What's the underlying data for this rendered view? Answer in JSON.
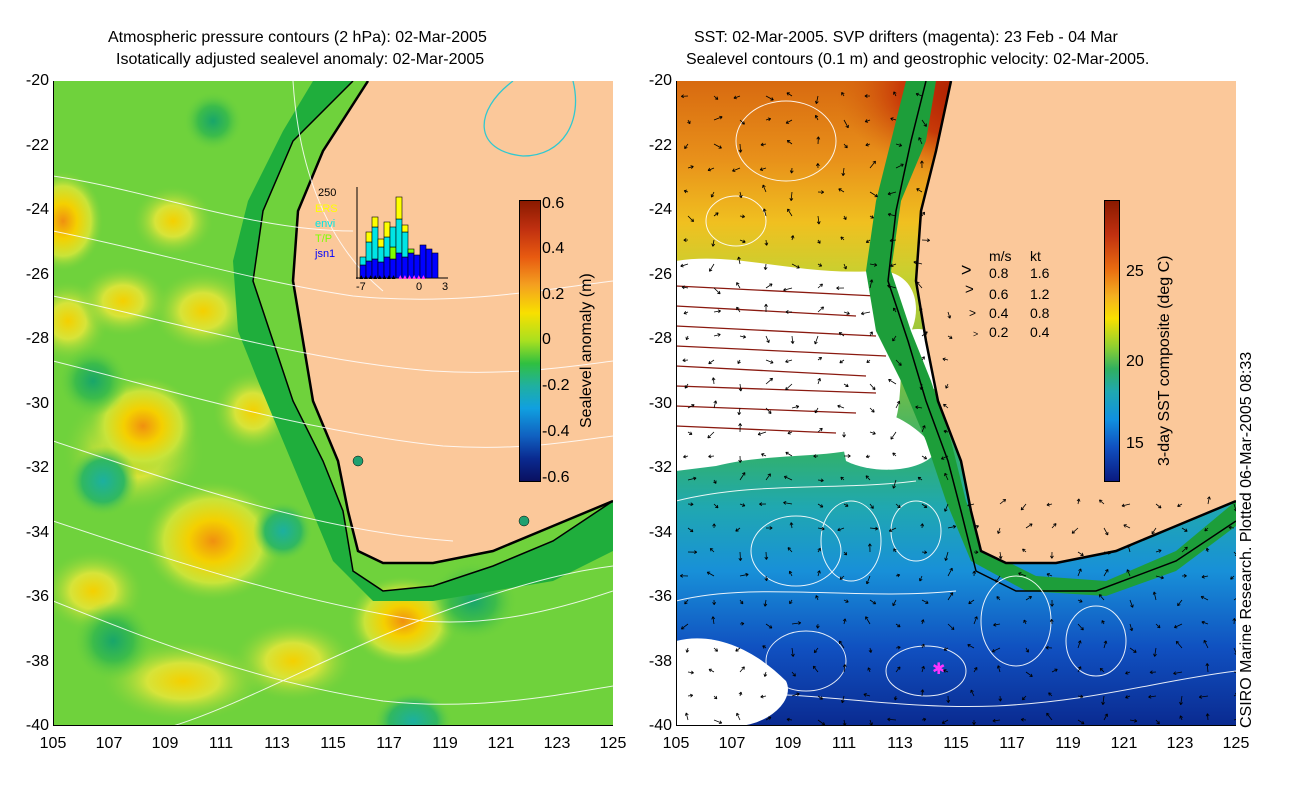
{
  "left_panel": {
    "title_line1": "Atmospheric pressure contours (2 hPa): 02-Mar-2005",
    "title_line2": "Isotatically adjusted sealevel anomaly: 02-Mar-2005",
    "y_ticks": [
      "-20",
      "-22",
      "-24",
      "-26",
      "-28",
      "-30",
      "-32",
      "-34",
      "-36",
      "-38",
      "-40"
    ],
    "x_ticks": [
      "105",
      "107",
      "109",
      "111",
      "113",
      "115",
      "117",
      "119",
      "121",
      "123",
      "125"
    ],
    "colorbar": {
      "label": "Sealevel anomaly (m)",
      "ticks": [
        "0.6",
        "0.4",
        "0.2",
        "0",
        "-0.2",
        "-0.4",
        "-0.6"
      ]
    },
    "inset": {
      "y_max_label": "250",
      "legend": [
        "ERS",
        "envi",
        "T/P",
        "jsn1"
      ],
      "legend_colors": [
        "#ffff00",
        "#00e5e5",
        "#7fff00",
        "#0000ff"
      ],
      "x_labels": [
        "-7",
        "0",
        "3"
      ]
    }
  },
  "right_panel": {
    "title_line1": "SST: 02-Mar-2005. SVP drifters (magenta): 23 Feb - 04 Mar",
    "title_line2": "Sealevel contours (0.1 m) and geostrophic velocity: 02-Mar-2005.",
    "y_ticks": [
      "-20",
      "-22",
      "-24",
      "-26",
      "-28",
      "-30",
      "-32",
      "-34",
      "-36",
      "-38",
      "-40"
    ],
    "x_ticks": [
      "105",
      "107",
      "109",
      "111",
      "113",
      "115",
      "117",
      "119",
      "121",
      "123",
      "125"
    ],
    "colorbar": {
      "label": "3-day SST composite (deg C)",
      "ticks": [
        "25",
        "20",
        "15"
      ]
    },
    "velocity_legend": {
      "header_ms": "m/s",
      "header_kt": "kt",
      "rows": [
        {
          "ms": "0.8",
          "kt": "1.6"
        },
        {
          "ms": "0.6",
          "kt": "1.2"
        },
        {
          "ms": "0.4",
          "kt": "0.8"
        },
        {
          "ms": "0.2",
          "kt": "0.4"
        }
      ]
    }
  },
  "credit": "CSIRO Marine Research. Plotted 06-Mar-2005 08:33",
  "colors": {
    "land": "#fbc89a",
    "shelf": "#1fae3c",
    "anomaly_base": "#6fd23c",
    "drifter": "#ff33ff"
  }
}
